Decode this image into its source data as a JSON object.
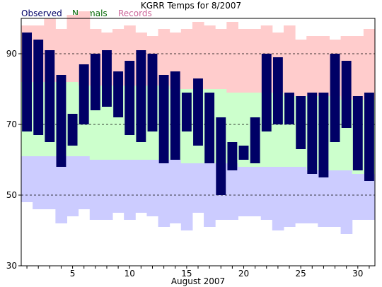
{
  "chart_data": {
    "type": "bar",
    "title": "KGRR Temps for 8/2007",
    "xlabel": "August 2007",
    "ylabel": "",
    "legend": [
      "Observed",
      "Normals",
      "Records"
    ],
    "legend_placement": "top-left",
    "colors": {
      "observed": "#000066",
      "normals": "#ccffcc",
      "records": "#ffcccc",
      "record_low_band": "#ccccff",
      "legend_observed": "#000066",
      "legend_normals": "#006600",
      "legend_records": "#cc6699"
    },
    "xlim": [
      0.5,
      31.5
    ],
    "ylim": [
      30,
      100
    ],
    "yticks": [
      30,
      50,
      70,
      90
    ],
    "xticks": [
      5,
      10,
      15,
      20,
      25,
      30
    ],
    "grid_dashed_y": [
      50,
      70,
      90
    ],
    "days": [
      1,
      2,
      3,
      4,
      5,
      6,
      7,
      8,
      9,
      10,
      11,
      12,
      13,
      14,
      15,
      16,
      17,
      18,
      19,
      20,
      21,
      22,
      23,
      24,
      25,
      26,
      27,
      28,
      29,
      30,
      31
    ],
    "series": [
      {
        "name": "Observed",
        "high": [
          96,
          94,
          91,
          84,
          73,
          87,
          90,
          91,
          85,
          88,
          91,
          90,
          84,
          85,
          79,
          83,
          79,
          72,
          65,
          64,
          72,
          90,
          89,
          79,
          78,
          79,
          79,
          90,
          88,
          78,
          79
        ],
        "low": [
          68,
          67,
          65,
          58,
          64,
          70,
          74,
          75,
          72,
          67,
          65,
          68,
          59,
          60,
          68,
          64,
          59,
          50,
          57,
          60,
          59,
          68,
          70,
          70,
          63,
          56,
          55,
          65,
          69,
          57,
          54
        ]
      },
      {
        "name": "Normals",
        "high": [
          82,
          82,
          82,
          82,
          82,
          81,
          81,
          81,
          81,
          81,
          81,
          81,
          81,
          80,
          80,
          80,
          80,
          80,
          79,
          79,
          79,
          79,
          79,
          78,
          78,
          78,
          78,
          78,
          77,
          77,
          77
        ],
        "low": [
          61,
          61,
          61,
          61,
          61,
          61,
          60,
          60,
          60,
          60,
          60,
          60,
          60,
          60,
          59,
          59,
          59,
          59,
          59,
          58,
          58,
          58,
          58,
          58,
          58,
          57,
          57,
          57,
          57,
          56,
          56
        ]
      },
      {
        "name": "Records",
        "high": [
          98,
          98,
          100,
          97,
          101,
          102,
          97,
          96,
          97,
          98,
          96,
          95,
          97,
          96,
          97,
          99,
          98,
          97,
          99,
          97,
          97,
          98,
          96,
          98,
          94,
          95,
          95,
          94,
          95,
          95,
          97
        ],
        "low": [
          48,
          46,
          46,
          42,
          44,
          46,
          43,
          43,
          45,
          43,
          45,
          44,
          41,
          42,
          40,
          45,
          41,
          43,
          43,
          44,
          44,
          43,
          40,
          41,
          42,
          42,
          41,
          41,
          39,
          43,
          43
        ]
      }
    ]
  }
}
